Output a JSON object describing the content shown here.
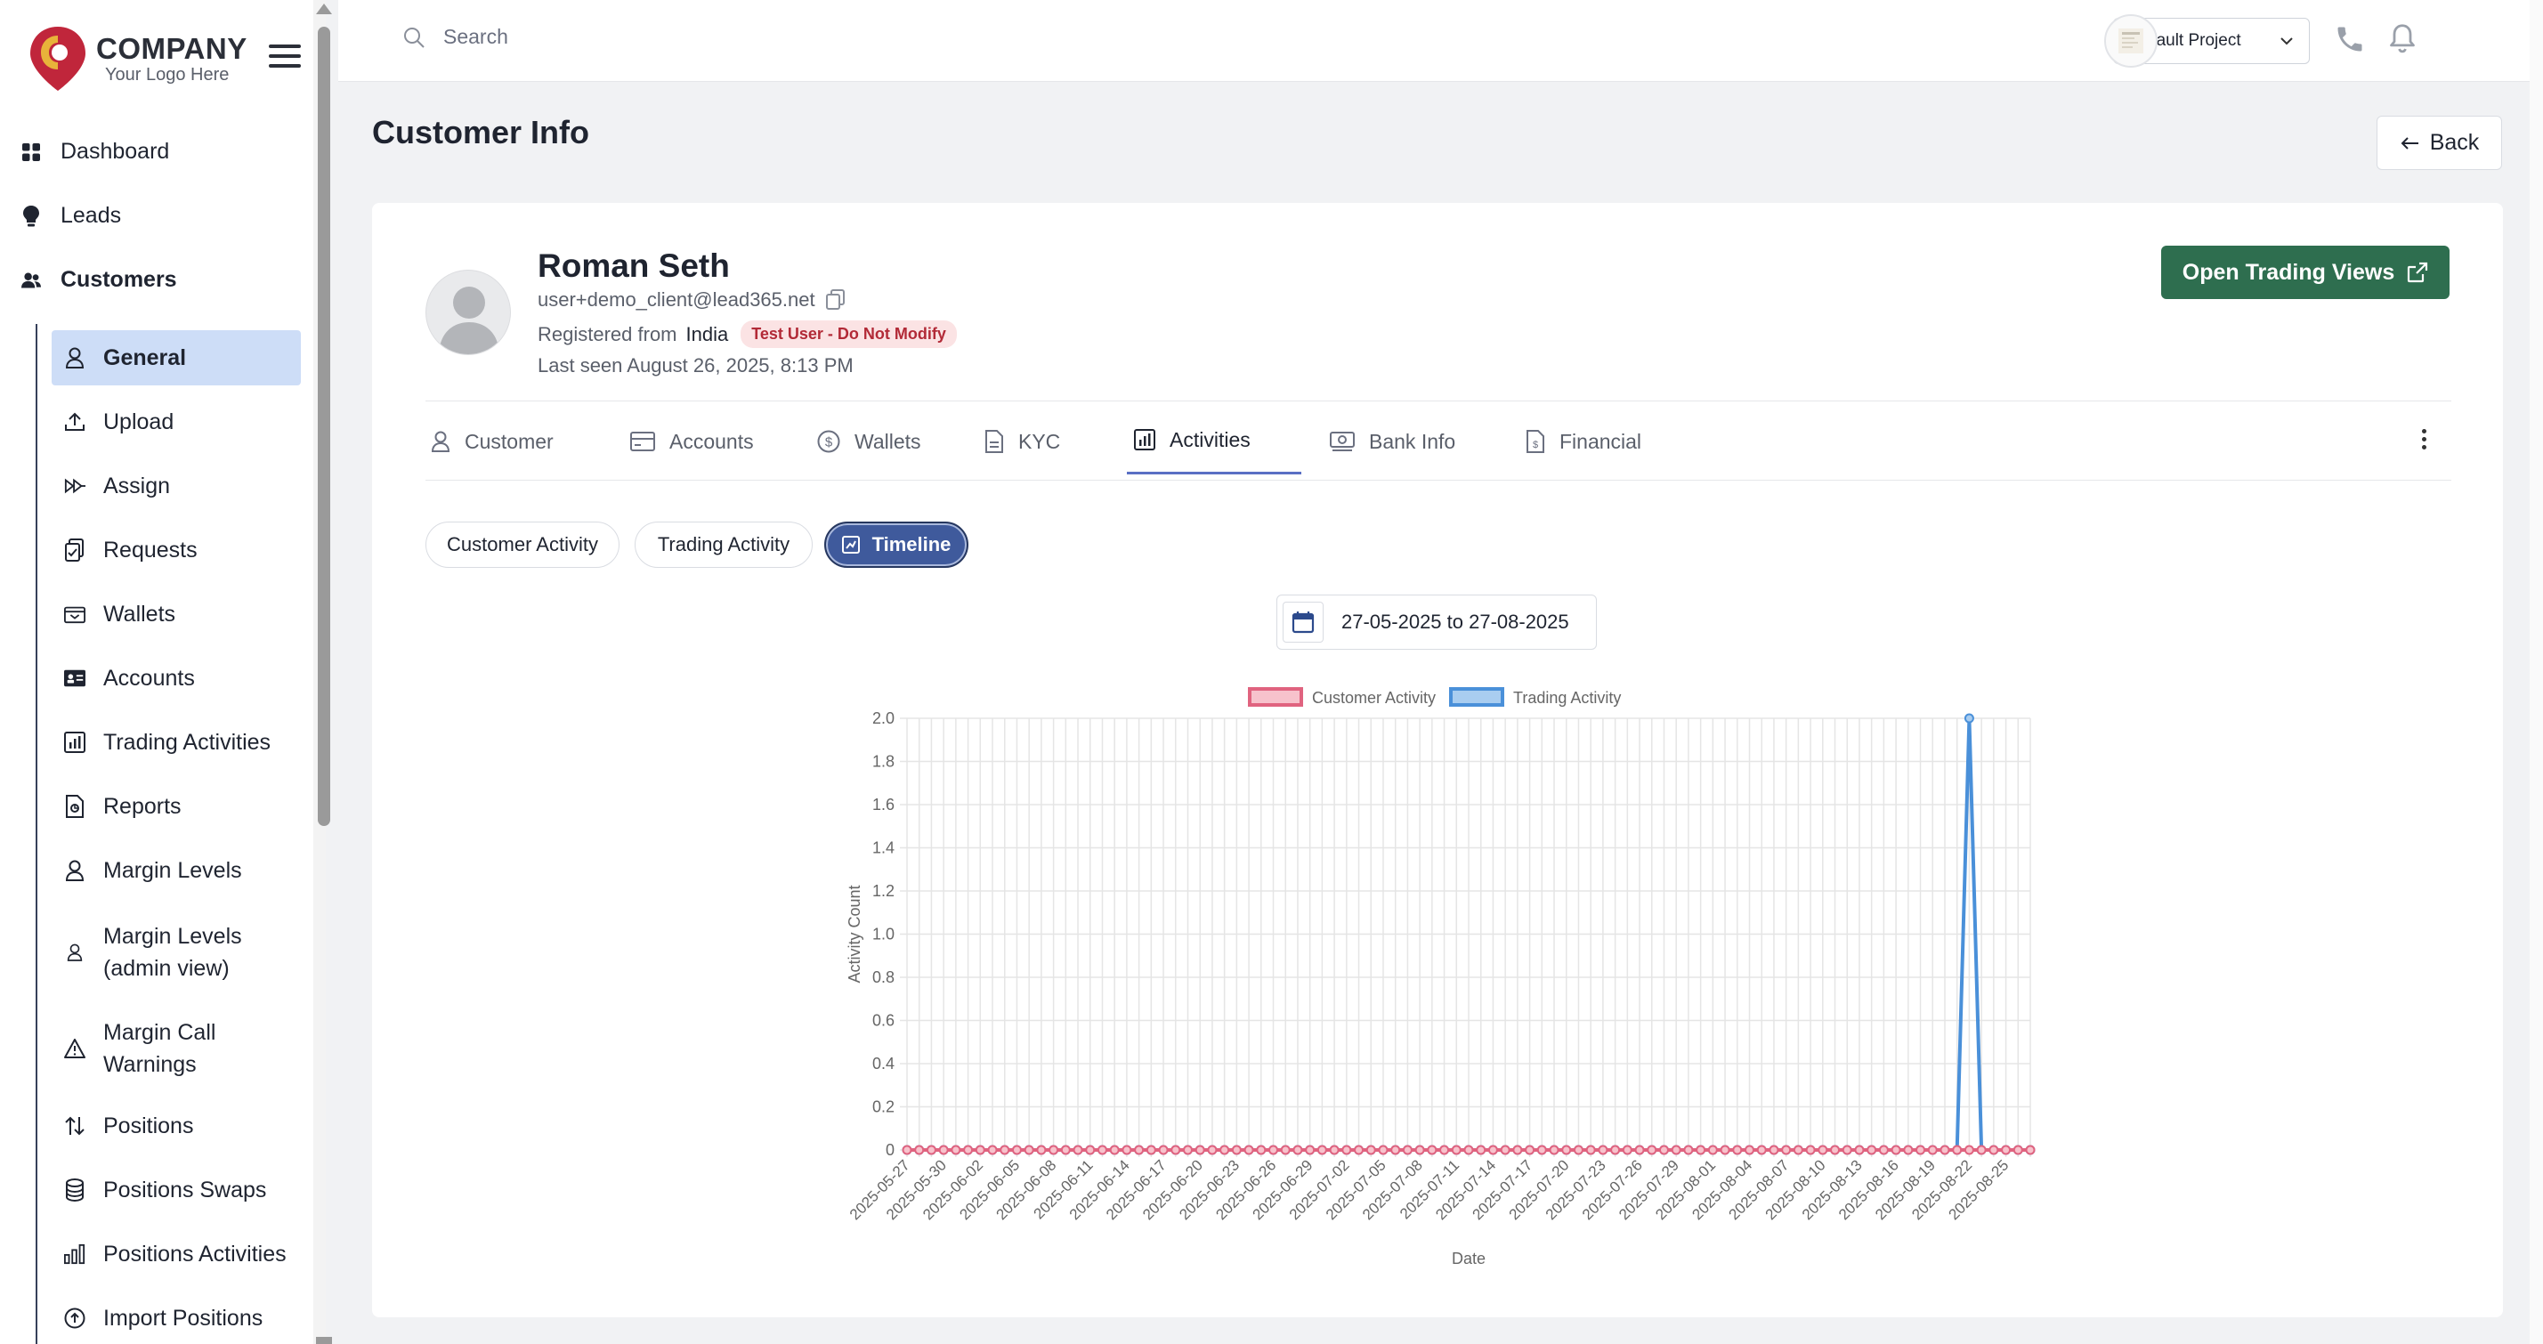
{
  "brand": {
    "name": "COMPANY",
    "tagline": "Your Logo Here"
  },
  "sidebar": {
    "top_items": [
      {
        "label": "Dashboard",
        "icon": "grid-icon"
      },
      {
        "label": "Leads",
        "icon": "lightbulb-icon"
      },
      {
        "label": "Customers",
        "icon": "users-icon"
      }
    ],
    "sub_items": [
      {
        "label": "General",
        "icon": "user-icon",
        "active": true
      },
      {
        "label": "Upload",
        "icon": "upload-icon"
      },
      {
        "label": "Assign",
        "icon": "assign-icon"
      },
      {
        "label": "Requests",
        "icon": "clipboard-icon"
      },
      {
        "label": "Wallets",
        "icon": "wallet-icon"
      },
      {
        "label": "Accounts",
        "icon": "id-card-icon"
      },
      {
        "label": "Trading Activities",
        "icon": "bar-chart-icon"
      },
      {
        "label": "Reports",
        "icon": "file-report-icon"
      },
      {
        "label": "Margin Levels",
        "icon": "user-icon"
      },
      {
        "label_l1": "Margin Levels",
        "label_l2": "(admin view)",
        "icon": "user-small-icon"
      },
      {
        "label_l1": "Margin Call",
        "label_l2": "Warnings",
        "icon": "warning-icon"
      },
      {
        "label": "Positions",
        "icon": "arrows-updown-icon"
      },
      {
        "label": "Positions Swaps",
        "icon": "database-icon"
      },
      {
        "label": "Positions Activities",
        "icon": "bars-icon"
      },
      {
        "label": "Import Positions",
        "icon": "upload-circle-icon"
      }
    ]
  },
  "topbar": {
    "search_placeholder": "Search",
    "project": "Default Project"
  },
  "page": {
    "title": "Customer Info",
    "back_label": "Back"
  },
  "customer": {
    "name": "Roman Seth",
    "email": "user+demo_client@lead365.net",
    "registered_prefix": "Registered from",
    "country": "India",
    "badge": "Test User - Do Not Modify",
    "last_seen": "Last seen August 26, 2025, 8:13 PM",
    "open_tv_label": "Open Trading Views"
  },
  "tabs": [
    {
      "label": "Customer",
      "icon": "user-icon"
    },
    {
      "label": "Accounts",
      "icon": "card-icon"
    },
    {
      "label": "Wallets",
      "icon": "dollar-icon"
    },
    {
      "label": "KYC",
      "icon": "file-icon"
    },
    {
      "label": "Activities",
      "icon": "bar-chart-icon",
      "active": true
    },
    {
      "label": "Bank Info",
      "icon": "money-icon"
    },
    {
      "label": "Financial",
      "icon": "file-money-icon"
    }
  ],
  "subtabs": [
    {
      "label": "Customer Activity"
    },
    {
      "label": "Trading Activity"
    },
    {
      "label": "Timeline",
      "active": true
    }
  ],
  "date_range": "27-05-2025 to 27-08-2025",
  "chart_data": {
    "type": "line",
    "xlabel": "Date",
    "ylabel": "Activity Count",
    "ylim": [
      0,
      2
    ],
    "yticks": [
      "0",
      "0.2",
      "0.4",
      "0.6",
      "0.8",
      "1.0",
      "1.2",
      "1.4",
      "1.6",
      "1.8",
      "2.0"
    ],
    "x_start": "2025-05-27",
    "x_end": "2025-08-27",
    "x_tick_labels": [
      "2025-05-27",
      "2025-05-30",
      "2025-06-02",
      "2025-06-05",
      "2025-06-08",
      "2025-06-11",
      "2025-06-14",
      "2025-06-17",
      "2025-06-20",
      "2025-06-23",
      "2025-06-26",
      "2025-06-29",
      "2025-07-02",
      "2025-07-05",
      "2025-07-08",
      "2025-07-11",
      "2025-07-14",
      "2025-07-17",
      "2025-07-20",
      "2025-07-23",
      "2025-07-26",
      "2025-07-29",
      "2025-08-01",
      "2025-08-04",
      "2025-08-07",
      "2025-08-10",
      "2025-08-13",
      "2025-08-16",
      "2025-08-19",
      "2025-08-22",
      "2025-08-25"
    ],
    "legend_position": "top",
    "grid": true,
    "series": [
      {
        "name": "Customer Activity",
        "color": "#e0637f",
        "fill": "#f7c2cc",
        "values": "all-zero"
      },
      {
        "name": "Trading Activity",
        "color": "#4a90d9",
        "fill": "#a9cdf0",
        "points": [
          {
            "x": "2025-08-22",
            "y": 2
          }
        ],
        "otherwise": 0
      }
    ]
  },
  "colors": {
    "accent": "#3f5a9c",
    "open_tv_bg": "#2e6e4f",
    "active_nav_bg": "#cdddf7"
  }
}
